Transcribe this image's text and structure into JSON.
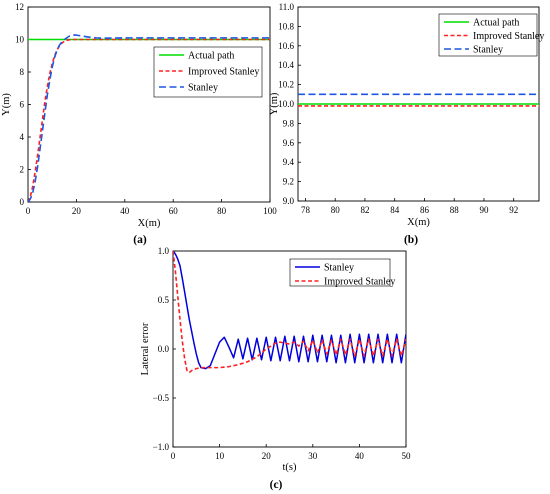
{
  "chart_data": [
    {
      "panel_label": "(a)",
      "type": "line",
      "xlabel": "X(m)",
      "ylabel": "Y(m)",
      "xlim": [
        0,
        100
      ],
      "ylim": [
        0,
        12
      ],
      "xticks": [
        0,
        20,
        40,
        60,
        80,
        100
      ],
      "yticks": [
        0,
        2,
        4,
        6,
        8,
        10,
        12
      ],
      "legend_position": "right-middle",
      "series": [
        {
          "name": "Actual path",
          "color": "#00dd00",
          "dash": "solid",
          "x": [
            0,
            100
          ],
          "y": [
            10,
            10
          ]
        },
        {
          "name": "Improved Stanley",
          "color": "#ff2020",
          "dash": "short-dash",
          "x": [
            0,
            1,
            2,
            3,
            4,
            5,
            6,
            7,
            8,
            9,
            10,
            11,
            12,
            13,
            14,
            15,
            16,
            17,
            18,
            20,
            25,
            30,
            40,
            50,
            60,
            70,
            80,
            90,
            100
          ],
          "y": [
            0,
            0.35,
            1.0,
            1.9,
            2.9,
            4.0,
            5.1,
            6.2,
            7.1,
            7.9,
            8.5,
            9.0,
            9.35,
            9.6,
            9.78,
            9.88,
            9.95,
            9.98,
            10.0,
            10.0,
            10.0,
            10.0,
            10.0,
            10.0,
            10.0,
            10.0,
            10.0,
            10.0,
            10.0
          ]
        },
        {
          "name": "Stanley",
          "color": "#1e56e0",
          "dash": "long-dash",
          "x": [
            0,
            1,
            2,
            3,
            4,
            5,
            6,
            7,
            8,
            9,
            10,
            11,
            12,
            13,
            14,
            15,
            16,
            17,
            18,
            19,
            20,
            22,
            25,
            28,
            32,
            40,
            50,
            60,
            70,
            80,
            90,
            100
          ],
          "y": [
            0,
            0.2,
            0.6,
            1.3,
            2.2,
            3.3,
            4.4,
            5.5,
            6.6,
            7.5,
            8.3,
            8.9,
            9.35,
            9.65,
            9.85,
            10.0,
            10.1,
            10.2,
            10.25,
            10.28,
            10.27,
            10.22,
            10.15,
            10.1,
            10.08,
            10.1,
            10.1,
            10.1,
            10.1,
            10.1,
            10.1,
            10.1
          ]
        }
      ]
    },
    {
      "panel_label": "(b)",
      "type": "line",
      "xlabel": "X(m)",
      "ylabel": "Y(m)",
      "xlim": [
        77.5,
        93.7
      ],
      "ylim": [
        9.0,
        11.0
      ],
      "xticks": [
        78,
        80,
        82,
        84,
        86,
        88,
        90,
        92
      ],
      "yticks": [
        9.0,
        9.2,
        9.4,
        9.6,
        9.8,
        10.0,
        10.2,
        10.4,
        10.6,
        10.8,
        11.0
      ],
      "legend_position": "top-right",
      "series": [
        {
          "name": "Actual path",
          "color": "#00dd00",
          "dash": "solid",
          "x": [
            77.5,
            93.7
          ],
          "y": [
            10.0,
            10.0
          ]
        },
        {
          "name": "Improved Stanley",
          "color": "#ff2020",
          "dash": "short-dash",
          "x": [
            77.5,
            93.7
          ],
          "y": [
            9.98,
            9.98
          ]
        },
        {
          "name": "Stanley",
          "color": "#1e56e0",
          "dash": "long-dash",
          "x": [
            77.5,
            93.7
          ],
          "y": [
            10.1,
            10.1
          ]
        }
      ]
    },
    {
      "panel_label": "(c)",
      "type": "line",
      "xlabel": "t(s)",
      "ylabel": "Lateral error",
      "xlim": [
        0,
        50
      ],
      "ylim": [
        -1.0,
        1.0
      ],
      "xticks": [
        0,
        10,
        20,
        30,
        40,
        50
      ],
      "yticks": [
        -1.0,
        -0.5,
        0.0,
        0.5,
        1.0
      ],
      "ytick_labels": [
        "−1.0",
        "−0.5",
        "0.0",
        "0.5",
        "1.0"
      ],
      "legend_position": "top-right",
      "series": [
        {
          "name": "Stanley",
          "color": "#0000dd",
          "dash": "solid",
          "x": [
            0,
            0.5,
            1,
            1.5,
            2,
            2.5,
            3,
            3.5,
            4,
            4.5,
            5,
            5.5,
            6,
            7,
            8,
            9,
            10,
            11,
            12,
            13,
            14,
            15,
            16,
            17,
            18,
            19,
            20,
            21,
            22,
            23,
            24,
            25,
            26,
            27,
            28,
            29,
            30,
            31,
            32,
            33,
            34,
            35,
            36,
            37,
            38,
            39,
            40,
            41,
            42,
            43,
            44,
            45,
            46,
            47,
            48,
            49,
            50
          ],
          "y": [
            1.0,
            0.97,
            0.92,
            0.85,
            0.72,
            0.58,
            0.44,
            0.3,
            0.18,
            0.06,
            -0.05,
            -0.14,
            -0.19,
            -0.2,
            -0.17,
            -0.05,
            0.07,
            0.12,
            0.02,
            -0.09,
            0.1,
            -0.1,
            0.11,
            -0.11,
            0.11,
            -0.11,
            0.12,
            -0.12,
            0.12,
            -0.12,
            0.13,
            -0.12,
            0.13,
            -0.13,
            0.13,
            -0.13,
            0.14,
            -0.13,
            0.14,
            -0.13,
            0.14,
            -0.14,
            0.14,
            -0.14,
            0.15,
            -0.14,
            0.15,
            -0.14,
            0.15,
            -0.14,
            0.15,
            -0.14,
            0.15,
            -0.14,
            0.15,
            -0.14,
            0.15
          ]
        },
        {
          "name": "Improved Stanley",
          "color": "#ff2020",
          "dash": "short-dash",
          "x": [
            0,
            0.5,
            1,
            1.5,
            2,
            2.5,
            3,
            3.5,
            4,
            5,
            6,
            8,
            10,
            12,
            14,
            16,
            18,
            19,
            20,
            21,
            22,
            23,
            24,
            25,
            26,
            27,
            28,
            29,
            30,
            31,
            32,
            33,
            34,
            35,
            36,
            37,
            38,
            39,
            40,
            41,
            42,
            43,
            44,
            45,
            46,
            47,
            48,
            49,
            50
          ],
          "y": [
            1.0,
            0.8,
            0.55,
            0.3,
            0.08,
            -0.1,
            -0.22,
            -0.24,
            -0.22,
            -0.2,
            -0.19,
            -0.19,
            -0.19,
            -0.18,
            -0.16,
            -0.13,
            -0.08,
            -0.04,
            0.0,
            0.03,
            0.06,
            0.07,
            0.06,
            0.05,
            0.07,
            0.03,
            0.08,
            -0.02,
            0.09,
            -0.04,
            0.09,
            -0.05,
            0.09,
            -0.06,
            0.1,
            -0.06,
            0.1,
            -0.07,
            0.1,
            -0.07,
            0.1,
            -0.07,
            0.1,
            -0.07,
            0.1,
            -0.07,
            0.1,
            -0.07,
            0.1
          ]
        }
      ]
    }
  ]
}
